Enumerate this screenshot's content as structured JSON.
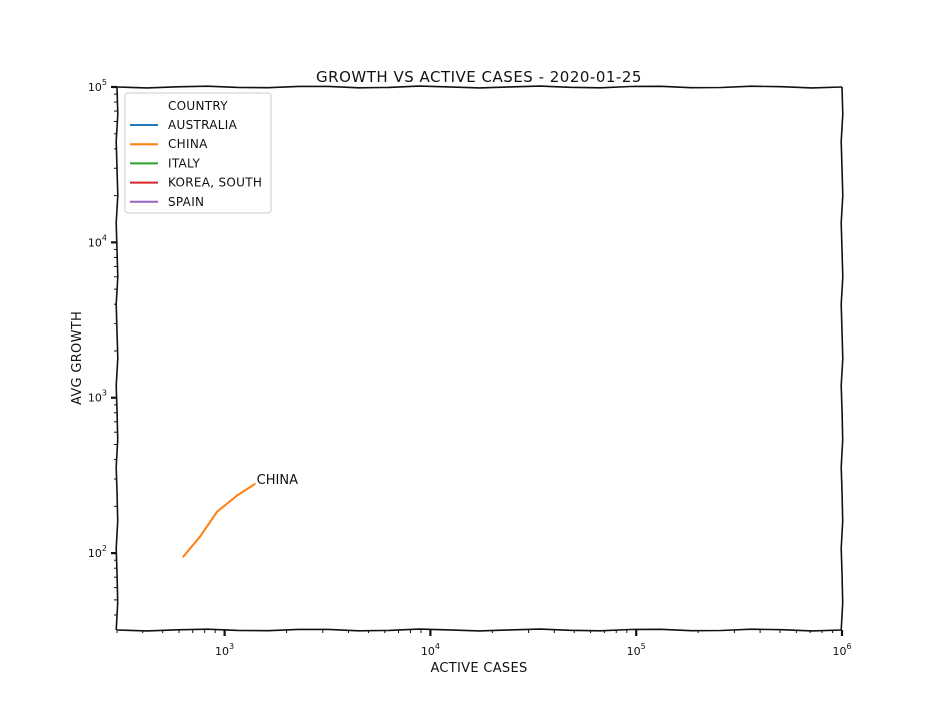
{
  "chart_data": {
    "type": "line",
    "title": "GROWTH VS ACTIVE CASES - 2020-01-25",
    "xlabel": "ACTIVE CASES",
    "ylabel": "AVG GROWTH",
    "xscale": "log",
    "yscale": "log",
    "xlim": [
      300,
      1000000
    ],
    "ylim": [
      32,
      100000
    ],
    "xticks": [
      {
        "value": 1000,
        "base": "10",
        "exp": "3"
      },
      {
        "value": 10000,
        "base": "10",
        "exp": "4"
      },
      {
        "value": 100000,
        "base": "10",
        "exp": "5"
      },
      {
        "value": 1000000,
        "base": "10",
        "exp": "6"
      }
    ],
    "yticks": [
      {
        "value": 100,
        "base": "10",
        "exp": "2"
      },
      {
        "value": 1000,
        "base": "10",
        "exp": "3"
      },
      {
        "value": 10000,
        "base": "10",
        "exp": "4"
      },
      {
        "value": 100000,
        "base": "10",
        "exp": "5"
      }
    ],
    "grid": false,
    "legend": {
      "title": "COUNTRY",
      "placement": "top-left"
    },
    "series": [
      {
        "name": "AUSTRALIA",
        "color": "#1f77b4",
        "x": [],
        "y": []
      },
      {
        "name": "CHINA",
        "color": "#ff7f0e",
        "x": [
          630,
          760,
          920,
          1150,
          1400
        ],
        "y": [
          95,
          128,
          185,
          235,
          278
        ],
        "annotation": "CHINA"
      },
      {
        "name": "ITALY",
        "color": "#2ca02c",
        "x": [],
        "y": []
      },
      {
        "name": "KOREA, SOUTH",
        "color": "#d62728",
        "x": [],
        "y": []
      },
      {
        "name": "SPAIN",
        "color": "#9467bd",
        "x": [],
        "y": []
      }
    ]
  }
}
